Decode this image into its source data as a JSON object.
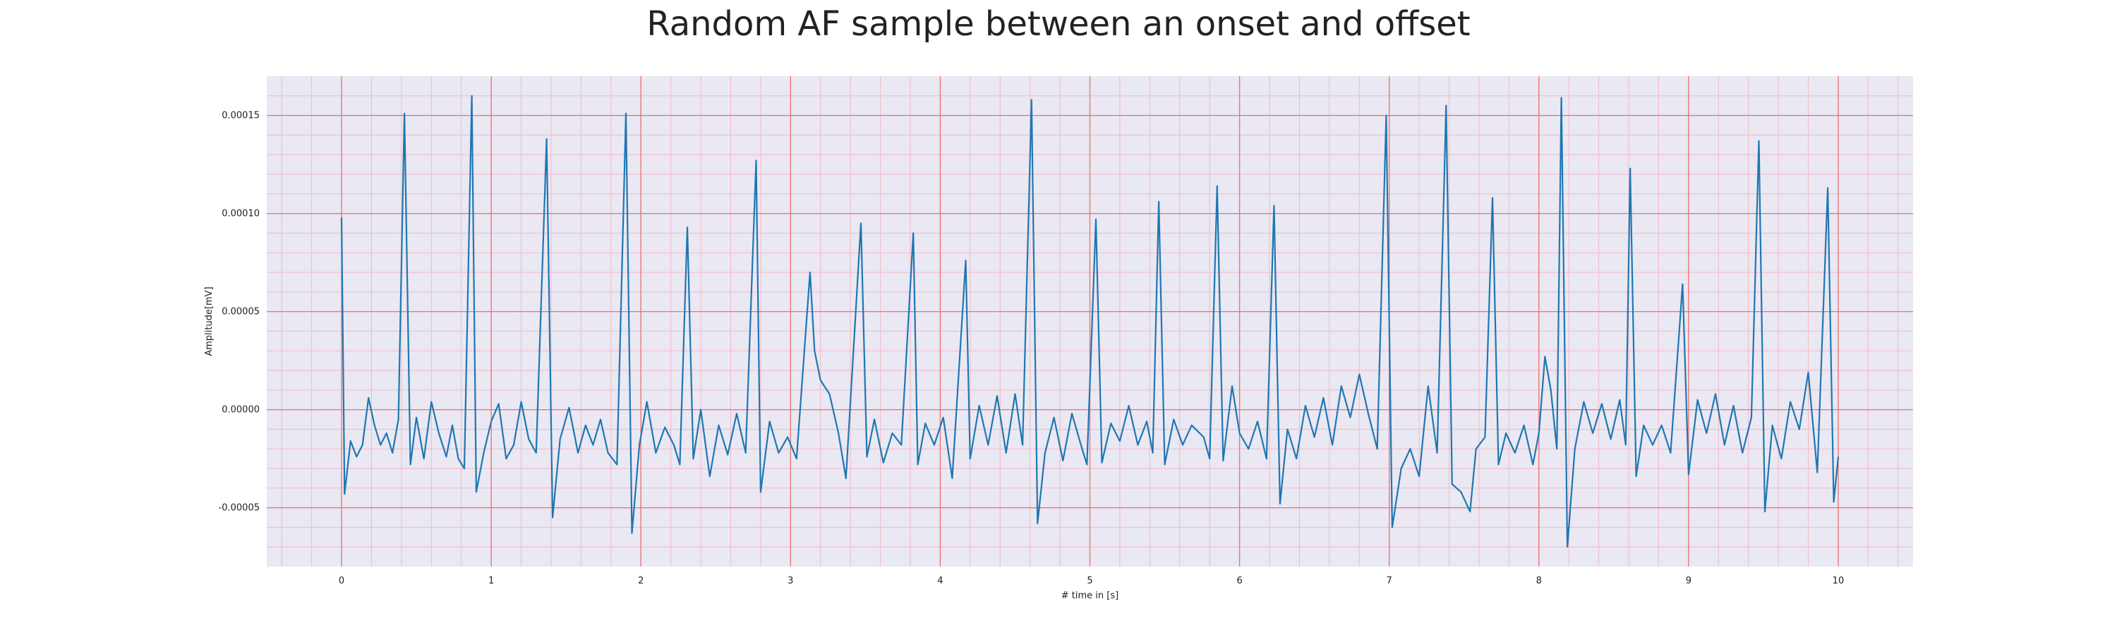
{
  "chart_data": {
    "type": "line",
    "title": "Random AF sample between an onset and offset",
    "xlabel": "# time in [s]",
    "ylabel": "Amplitude[mV]",
    "xlim": [
      -0.5,
      10.5
    ],
    "ylim": [
      -8e-05,
      0.00017
    ],
    "x_ticks": [
      0,
      1,
      2,
      3,
      4,
      5,
      6,
      7,
      8,
      9,
      10
    ],
    "x_tick_labels": [
      "0",
      "1",
      "2",
      "3",
      "4",
      "5",
      "6",
      "7",
      "8",
      "9",
      "10"
    ],
    "y_ticks": [
      -5e-05,
      0,
      5e-05,
      0.0001,
      0.00015
    ],
    "y_tick_labels": [
      "-0.00005",
      "0.00000",
      "0.00005",
      "0.00010",
      "0.00015"
    ],
    "grid": true,
    "minor_grid": true,
    "colors": {
      "line": "#1f77b4",
      "plot_bg": "#eae8f2",
      "grid_major": "#ef6f6f",
      "grid_minor": "#f3b9c1"
    },
    "series": [
      {
        "values": [
          [
            0.0,
            9.8e-05
          ],
          [
            0.02,
            -4.3e-05
          ],
          [
            0.06,
            -1.6e-05
          ],
          [
            0.1,
            -2.4e-05
          ],
          [
            0.14,
            -1.8e-05
          ],
          [
            0.18,
            6e-06
          ],
          [
            0.22,
            -8e-06
          ],
          [
            0.26,
            -1.8e-05
          ],
          [
            0.3,
            -1.2e-05
          ],
          [
            0.34,
            -2.2e-05
          ],
          [
            0.38,
            -5e-06
          ],
          [
            0.42,
            0.000151
          ],
          [
            0.46,
            -2.8e-05
          ],
          [
            0.5,
            -4e-06
          ],
          [
            0.55,
            -2.5e-05
          ],
          [
            0.6,
            4e-06
          ],
          [
            0.65,
            -1.2e-05
          ],
          [
            0.7,
            -2.4e-05
          ],
          [
            0.74,
            -8e-06
          ],
          [
            0.78,
            -2.5e-05
          ],
          [
            0.82,
            -3e-05
          ],
          [
            0.87,
            0.00016
          ],
          [
            0.9,
            -4.2e-05
          ],
          [
            0.95,
            -2.2e-05
          ],
          [
            1.0,
            -6e-06
          ],
          [
            1.05,
            3e-06
          ],
          [
            1.1,
            -2.5e-05
          ],
          [
            1.15,
            -1.8e-05
          ],
          [
            1.2,
            4e-06
          ],
          [
            1.25,
            -1.5e-05
          ],
          [
            1.3,
            -2.2e-05
          ],
          [
            1.37,
            0.000138
          ],
          [
            1.41,
            -5.5e-05
          ],
          [
            1.46,
            -1.5e-05
          ],
          [
            1.52,
            1e-06
          ],
          [
            1.58,
            -2.2e-05
          ],
          [
            1.63,
            -8e-06
          ],
          [
            1.68,
            -1.8e-05
          ],
          [
            1.73,
            -5e-06
          ],
          [
            1.78,
            -2.2e-05
          ],
          [
            1.84,
            -2.8e-05
          ],
          [
            1.9,
            0.000151
          ],
          [
            1.94,
            -6.3e-05
          ],
          [
            1.99,
            -1.8e-05
          ],
          [
            2.04,
            4e-06
          ],
          [
            2.1,
            -2.2e-05
          ],
          [
            2.16,
            -9e-06
          ],
          [
            2.22,
            -1.8e-05
          ],
          [
            2.26,
            -2.8e-05
          ],
          [
            2.31,
            9.3e-05
          ],
          [
            2.35,
            -2.5e-05
          ],
          [
            2.4,
            0.0
          ],
          [
            2.46,
            -3.4e-05
          ],
          [
            2.52,
            -8e-06
          ],
          [
            2.58,
            -2.3e-05
          ],
          [
            2.64,
            -2e-06
          ],
          [
            2.7,
            -2.2e-05
          ],
          [
            2.77,
            0.000127
          ],
          [
            2.8,
            -4.2e-05
          ],
          [
            2.86,
            -6e-06
          ],
          [
            2.92,
            -2.2e-05
          ],
          [
            2.98,
            -1.4e-05
          ],
          [
            3.04,
            -2.5e-05
          ],
          [
            3.13,
            7e-05
          ],
          [
            3.16,
            3e-05
          ],
          [
            3.2,
            1.5e-05
          ],
          [
            3.26,
            8e-06
          ],
          [
            3.32,
            -1.2e-05
          ],
          [
            3.37,
            -3.5e-05
          ],
          [
            3.47,
            9.5e-05
          ],
          [
            3.51,
            -2.4e-05
          ],
          [
            3.56,
            -5e-06
          ],
          [
            3.62,
            -2.7e-05
          ],
          [
            3.68,
            -1.2e-05
          ],
          [
            3.74,
            -1.8e-05
          ],
          [
            3.82,
            9e-05
          ],
          [
            3.85,
            -2.8e-05
          ],
          [
            3.9,
            -7e-06
          ],
          [
            3.96,
            -1.8e-05
          ],
          [
            4.02,
            -4e-06
          ],
          [
            4.08,
            -3.5e-05
          ],
          [
            4.17,
            7.6e-05
          ],
          [
            4.2,
            -2.5e-05
          ],
          [
            4.26,
            2e-06
          ],
          [
            4.32,
            -1.8e-05
          ],
          [
            4.38,
            7e-06
          ],
          [
            4.44,
            -2.2e-05
          ],
          [
            4.5,
            8e-06
          ],
          [
            4.55,
            -1.8e-05
          ],
          [
            4.61,
            0.000158
          ],
          [
            4.65,
            -5.8e-05
          ],
          [
            4.7,
            -2.2e-05
          ],
          [
            4.76,
            -4e-06
          ],
          [
            4.82,
            -2.6e-05
          ],
          [
            4.88,
            -2e-06
          ],
          [
            4.94,
            -1.8e-05
          ],
          [
            4.98,
            -2.8e-05
          ],
          [
            5.04,
            9.7e-05
          ],
          [
            5.08,
            -2.7e-05
          ],
          [
            5.14,
            -7e-06
          ],
          [
            5.2,
            -1.6e-05
          ],
          [
            5.26,
            2e-06
          ],
          [
            5.32,
            -1.8e-05
          ],
          [
            5.38,
            -6e-06
          ],
          [
            5.42,
            -2.2e-05
          ],
          [
            5.46,
            0.000106
          ],
          [
            5.5,
            -2.8e-05
          ],
          [
            5.56,
            -5e-06
          ],
          [
            5.62,
            -1.8e-05
          ],
          [
            5.68,
            -8e-06
          ],
          [
            5.76,
            -1.4e-05
          ],
          [
            5.8,
            -2.5e-05
          ],
          [
            5.85,
            0.000114
          ],
          [
            5.89,
            -2.6e-05
          ],
          [
            5.95,
            1.2e-05
          ],
          [
            6.0,
            -1.2e-05
          ],
          [
            6.06,
            -2e-05
          ],
          [
            6.12,
            -6e-06
          ],
          [
            6.18,
            -2.5e-05
          ],
          [
            6.23,
            0.000104
          ],
          [
            6.27,
            -4.8e-05
          ],
          [
            6.32,
            -1e-05
          ],
          [
            6.38,
            -2.5e-05
          ],
          [
            6.44,
            2e-06
          ],
          [
            6.5,
            -1.4e-05
          ],
          [
            6.56,
            6e-06
          ],
          [
            6.62,
            -1.8e-05
          ],
          [
            6.68,
            1.2e-05
          ],
          [
            6.74,
            -4e-06
          ],
          [
            6.8,
            1.8e-05
          ],
          [
            6.86,
            -2e-06
          ],
          [
            6.92,
            -2e-05
          ],
          [
            6.98,
            0.00015
          ],
          [
            7.02,
            -6e-05
          ],
          [
            7.08,
            -3e-05
          ],
          [
            7.14,
            -2e-05
          ],
          [
            7.2,
            -3.4e-05
          ],
          [
            7.26,
            1.2e-05
          ],
          [
            7.32,
            -2.2e-05
          ],
          [
            7.38,
            0.000155
          ],
          [
            7.42,
            -3.8e-05
          ],
          [
            7.48,
            -4.2e-05
          ],
          [
            7.54,
            -5.2e-05
          ],
          [
            7.58,
            -2e-05
          ],
          [
            7.64,
            -1.4e-05
          ],
          [
            7.69,
            0.000108
          ],
          [
            7.73,
            -2.8e-05
          ],
          [
            7.78,
            -1.2e-05
          ],
          [
            7.84,
            -2.2e-05
          ],
          [
            7.9,
            -8e-06
          ],
          [
            7.96,
            -2.8e-05
          ],
          [
            8.0,
            -1.2e-05
          ],
          [
            8.04,
            2.7e-05
          ],
          [
            8.08,
            1e-05
          ],
          [
            8.12,
            -2e-05
          ],
          [
            8.15,
            0.000159
          ],
          [
            8.19,
            -7e-05
          ],
          [
            8.24,
            -2e-05
          ],
          [
            8.3,
            4e-06
          ],
          [
            8.36,
            -1.2e-05
          ],
          [
            8.42,
            3e-06
          ],
          [
            8.48,
            -1.5e-05
          ],
          [
            8.54,
            5e-06
          ],
          [
            8.58,
            -1.8e-05
          ],
          [
            8.61,
            0.000123
          ],
          [
            8.65,
            -3.4e-05
          ],
          [
            8.7,
            -8e-06
          ],
          [
            8.76,
            -1.8e-05
          ],
          [
            8.82,
            -8e-06
          ],
          [
            8.88,
            -2.2e-05
          ],
          [
            8.96,
            6.4e-05
          ],
          [
            9.0,
            -3.3e-05
          ],
          [
            9.06,
            5e-06
          ],
          [
            9.12,
            -1.2e-05
          ],
          [
            9.18,
            8e-06
          ],
          [
            9.24,
            -1.8e-05
          ],
          [
            9.3,
            2e-06
          ],
          [
            9.36,
            -2.2e-05
          ],
          [
            9.42,
            -4e-06
          ],
          [
            9.47,
            0.000137
          ],
          [
            9.51,
            -5.2e-05
          ],
          [
            9.56,
            -8e-06
          ],
          [
            9.62,
            -2.5e-05
          ],
          [
            9.68,
            4e-06
          ],
          [
            9.74,
            -1e-05
          ],
          [
            9.8,
            1.9e-05
          ],
          [
            9.86,
            -3.2e-05
          ],
          [
            9.93,
            0.000113
          ],
          [
            9.97,
            -4.7e-05
          ],
          [
            10.0,
            -2.4e-05
          ]
        ]
      }
    ]
  }
}
